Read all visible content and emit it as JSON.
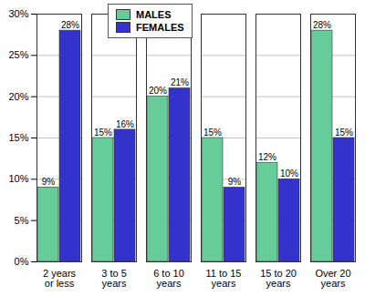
{
  "chart_data": {
    "type": "bar",
    "categories": [
      "2 years or less",
      "3 to 5 years",
      "6 to 10 years",
      "11 to 15 years",
      "15 to 20 years",
      "Over 20 years"
    ],
    "series": [
      {
        "name": "MALES",
        "color": "#66cc99",
        "values": [
          9,
          15,
          20,
          15,
          12,
          28
        ],
        "value_labels": [
          "9%",
          "15%",
          "20%",
          "15%",
          "12%",
          "28%"
        ]
      },
      {
        "name": "FEMALES",
        "color": "#3333cc",
        "values": [
          28,
          16,
          21,
          9,
          10,
          15
        ],
        "value_labels": [
          "28%",
          "16%",
          "21%",
          "9%",
          "10%",
          "15%"
        ]
      }
    ],
    "ylim": [
      0,
      30
    ],
    "yticks": [
      {
        "value": 0,
        "label": "0%"
      },
      {
        "value": 5,
        "label": "5%"
      },
      {
        "value": 10,
        "label": "10%"
      },
      {
        "value": 15,
        "label": "15%"
      },
      {
        "value": 20,
        "label": "20%"
      },
      {
        "value": 25,
        "label": "25%"
      },
      {
        "value": 30,
        "label": "30%"
      }
    ],
    "grid": true,
    "legend": "top",
    "data_labels": true
  }
}
